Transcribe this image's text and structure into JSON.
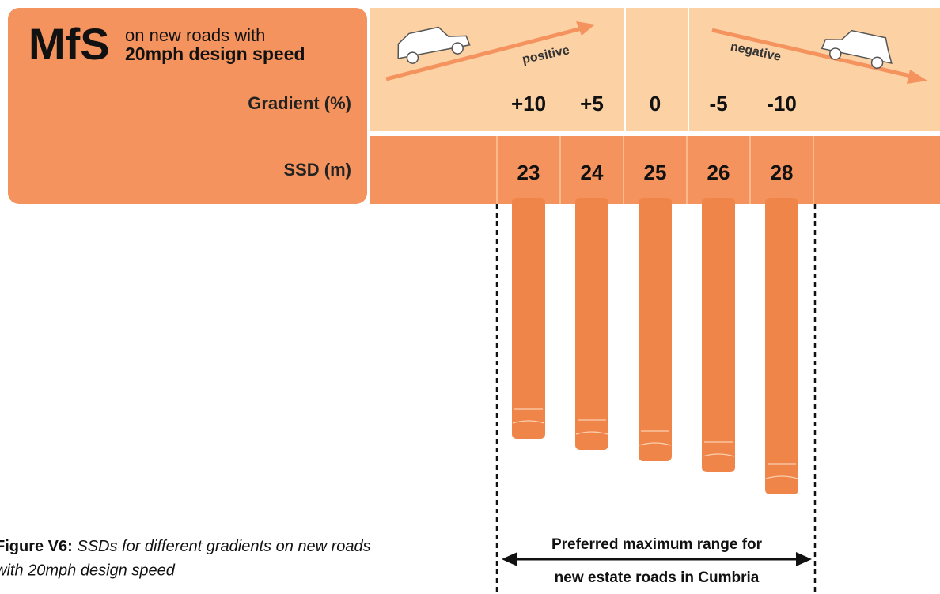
{
  "header": {
    "abbr": "MfS",
    "line1": "on new roads with",
    "line2": "20mph design speed"
  },
  "gradient_label": "Gradient  (%)",
  "ssd_label": "SSD  (m)",
  "positive_label": "positive",
  "negative_label": "negative",
  "columns": [
    {
      "gradient": "+10",
      "ssd": 23
    },
    {
      "gradient": "+5",
      "ssd": 24
    },
    {
      "gradient": "0",
      "ssd": 25
    },
    {
      "gradient": "-5",
      "ssd": 26
    },
    {
      "gradient": "-10",
      "ssd": 28
    }
  ],
  "range_label": {
    "line1": "Preferred maximum range for",
    "line2": "new estate roads in Cumbria"
  },
  "caption": {
    "label": "Figure V6:",
    "line1": "SSDs for different gradients on new roads",
    "line2": "with 20mph design speed"
  }
}
